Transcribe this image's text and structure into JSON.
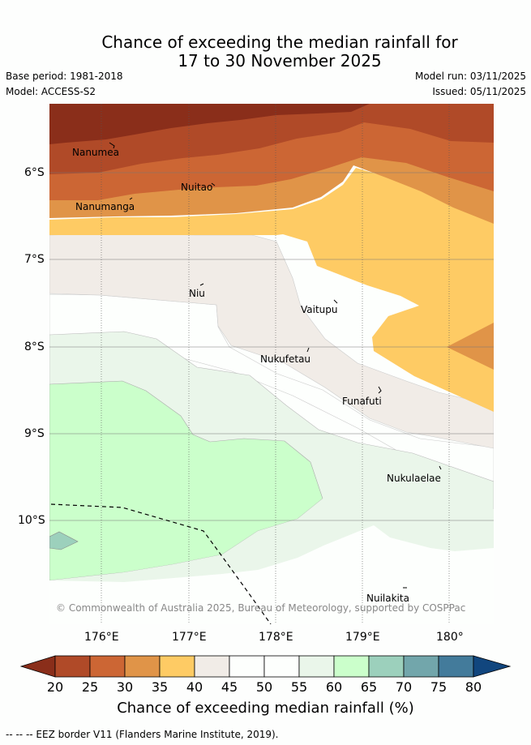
{
  "title_line1": "Chance of exceeding the median rainfall for",
  "title_line2": "17 to 30 November 2025",
  "base_period": "Base period: 1981-2018",
  "model": "Model: ACCESS-S2",
  "model_run": "Model run: 03/11/2025",
  "issued": "Issued: 05/11/2025",
  "copyright": "© Commonwealth of Australia 2025, Bureau of Meteorology, supported by COSPPac",
  "lat_labels": [
    "6°S",
    "7°S",
    "8°S",
    "9°S",
    "10°S"
  ],
  "lon_labels": [
    "176°E",
    "177°E",
    "178°E",
    "179°E",
    "180°"
  ],
  "places": {
    "nanumea": "Nanumea",
    "nuitao": "Nuitao",
    "nanumanga": "Nanumanga",
    "niu": "Niu",
    "vaitupu": "Vaitupu",
    "nukufetau": "Nukufetau",
    "funafuti": "Funafuti",
    "nukulaelae": "Nukulaelae",
    "nuilakita": "Nuilakita"
  },
  "colorbar": {
    "ticks": [
      "20",
      "25",
      "30",
      "35",
      "40",
      "45",
      "50",
      "55",
      "60",
      "65",
      "70",
      "75",
      "80"
    ],
    "colors": [
      "#8a2e1a",
      "#b04a28",
      "#cc6634",
      "#e09448",
      "#fecb64",
      "#f1ece7",
      "#fdfffd",
      "#fdfffd",
      "#eaf6ea",
      "#cbffcb",
      "#9cd0bc",
      "#72a6ab",
      "#437b9b",
      "#11467e"
    ],
    "label": "Chance of exceeding median rainfall (%)"
  },
  "legend_text": "--  --  -- EEZ border V11 (Flanders Marine Institute, 2019)."
}
